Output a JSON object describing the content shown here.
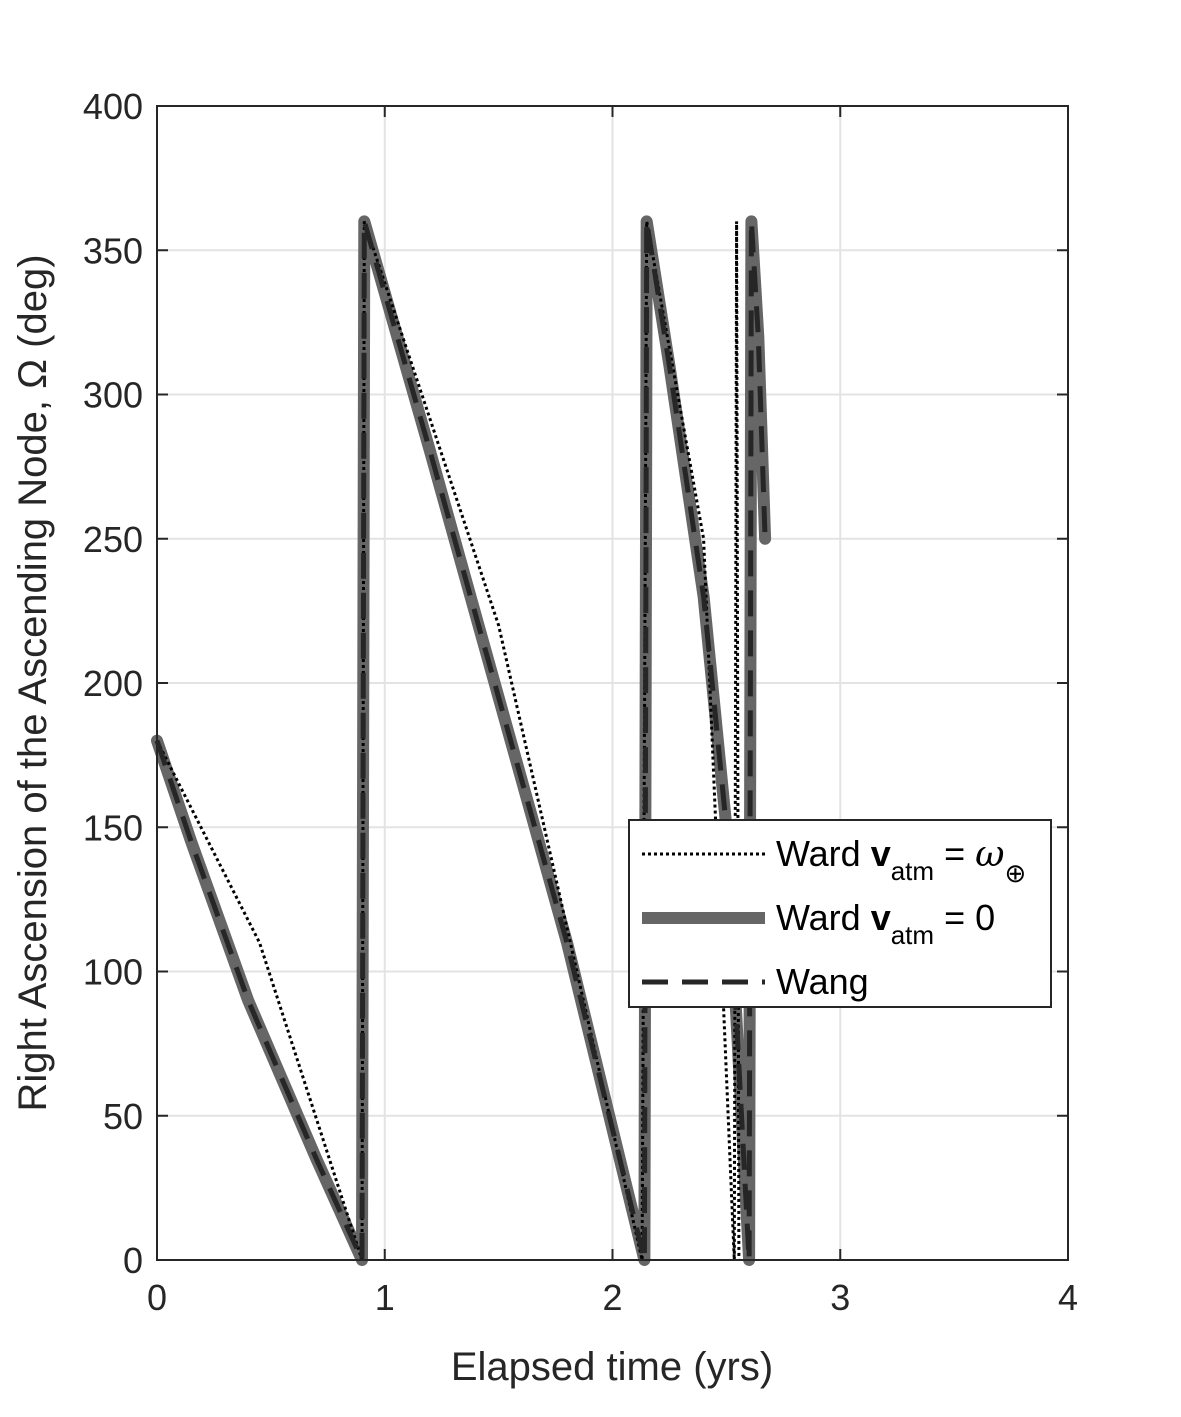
{
  "chart_data": {
    "type": "line",
    "xlabel": "Elapsed time (yrs)",
    "ylabel": "Right Ascension of the Ascending Node, Ω (deg)",
    "xlim": [
      0,
      4
    ],
    "ylim": [
      0,
      400
    ],
    "xticks": [
      "0",
      "1",
      "2",
      "3",
      "4"
    ],
    "yticks": [
      "0",
      "50",
      "100",
      "150",
      "200",
      "250",
      "300",
      "350",
      "400"
    ],
    "grid": true,
    "legend_position": "right-middle",
    "series": [
      {
        "legend": {
          "prefix": "Ward ",
          "bold": "v",
          "sub": "atm",
          "eq": " = ",
          "rhs": "ω",
          "rhs_sub": "⊕"
        },
        "style": "dotted",
        "color": "#000000",
        "x": [
          0,
          0.45,
          0.9,
          0.91,
          1.5,
          2.13,
          2.15,
          2.4,
          2.535,
          2.545,
          2.555
        ],
        "y": [
          180,
          110,
          0,
          360,
          220,
          0,
          360,
          250,
          0,
          360,
          0
        ]
      },
      {
        "legend": {
          "prefix": "Ward ",
          "bold": "v",
          "sub": "atm",
          "eq": " = ",
          "rhs": "0",
          "rhs_sub": ""
        },
        "style": "solid-thick",
        "color": "#666666",
        "x": [
          0,
          0.15,
          0.4,
          0.7,
          0.9,
          0.91,
          1.2,
          1.5,
          1.8,
          2.14,
          2.15,
          2.25,
          2.4,
          2.5,
          2.6,
          2.61,
          2.64,
          2.67
        ],
        "y": [
          180,
          145,
          90,
          35,
          0,
          360,
          280,
          195,
          110,
          0,
          360,
          310,
          230,
          150,
          0,
          360,
          320,
          250
        ]
      },
      {
        "legend": {
          "prefix": "Wang",
          "bold": "",
          "sub": "",
          "eq": "",
          "rhs": "",
          "rhs_sub": ""
        },
        "style": "dashed",
        "color": "#262626",
        "x": [
          0,
          0.15,
          0.4,
          0.7,
          0.9,
          0.91,
          1.2,
          1.5,
          1.8,
          2.14,
          2.15,
          2.25,
          2.4,
          2.5,
          2.6,
          2.61,
          2.64,
          2.67
        ],
        "y": [
          180,
          145,
          90,
          35,
          0,
          360,
          280,
          195,
          110,
          0,
          360,
          310,
          230,
          150,
          0,
          360,
          320,
          250
        ]
      }
    ]
  }
}
